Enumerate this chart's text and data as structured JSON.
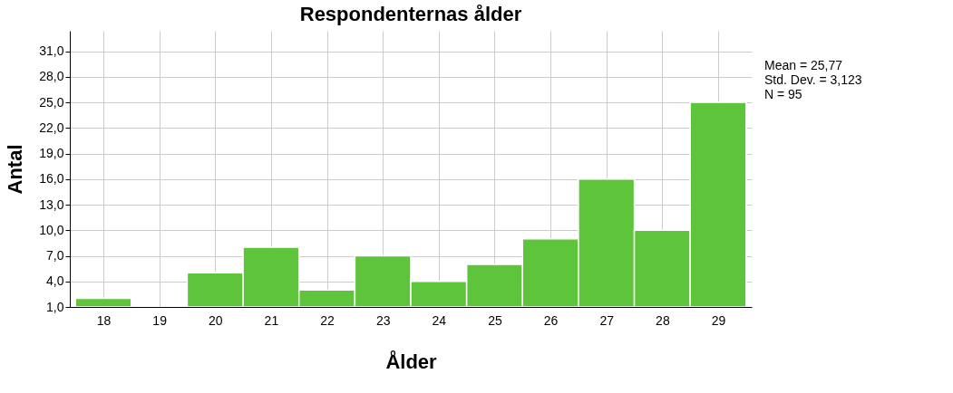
{
  "chart_data": {
    "type": "histogram",
    "title": "Respondenternas ålder",
    "xlabel": "Ålder",
    "ylabel": "Antal",
    "bins": [
      17.5,
      18.5,
      19.5,
      20.5,
      21.5,
      22.5,
      23.5,
      24.5,
      25.5,
      26.5,
      27.5,
      28.5,
      29.5
    ],
    "values": [
      2,
      null,
      5,
      8,
      3,
      7,
      4,
      6,
      9,
      16,
      10,
      25
    ],
    "color": "#5ec43b",
    "xlim": [
      17.4,
      29.6
    ],
    "xticks": [
      18,
      19,
      20,
      21,
      22,
      23,
      24,
      25,
      26,
      27,
      28,
      29
    ],
    "ylim": [
      1,
      33.4
    ],
    "yticks": [
      {
        "value": 1,
        "label": "1,0"
      },
      {
        "value": 4,
        "label": "4,0"
      },
      {
        "value": 7,
        "label": "7,0"
      },
      {
        "value": 10,
        "label": "10,0"
      },
      {
        "value": 13,
        "label": "13,0"
      },
      {
        "value": 16,
        "label": "16,0"
      },
      {
        "value": 19,
        "label": "19,0"
      },
      {
        "value": 22,
        "label": "22,0"
      },
      {
        "value": 25,
        "label": "25,0"
      },
      {
        "value": 28,
        "label": "28,0"
      },
      {
        "value": 31,
        "label": "31,0"
      }
    ],
    "grid": true,
    "annotations": [
      "Mean = 25,77",
      "Std. Dev. = 3,123",
      "N = 95"
    ]
  }
}
